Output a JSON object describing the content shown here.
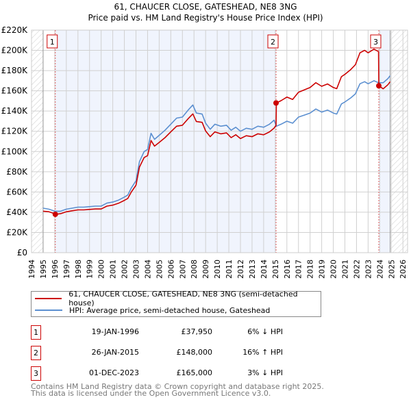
{
  "chart_data": {
    "type": "line",
    "title": "61, CHAUCER CLOSE, GATESHEAD, NE8 3NG",
    "subtitle": "Price paid vs. HM Land Registry's House Price Index (HPI)",
    "xlim": [
      1994,
      2026
    ],
    "ylim": [
      0,
      220000
    ],
    "x_ticks": [
      1994,
      1995,
      1996,
      1997,
      1998,
      1999,
      2000,
      2001,
      2002,
      2003,
      2004,
      2005,
      2006,
      2007,
      2008,
      2009,
      2010,
      2011,
      2012,
      2013,
      2014,
      2015,
      2016,
      2017,
      2018,
      2019,
      2020,
      2021,
      2022,
      2023,
      2024,
      2025,
      2026
    ],
    "y_ticks": [
      {
        "value": 0,
        "label": "£0"
      },
      {
        "value": 20000,
        "label": "£20K"
      },
      {
        "value": 40000,
        "label": "£40K"
      },
      {
        "value": 60000,
        "label": "£60K"
      },
      {
        "value": 80000,
        "label": "£80K"
      },
      {
        "value": 100000,
        "label": "£100K"
      },
      {
        "value": 120000,
        "label": "£120K"
      },
      {
        "value": 140000,
        "label": "£140K"
      },
      {
        "value": 160000,
        "label": "£160K"
      },
      {
        "value": 180000,
        "label": "£180K"
      },
      {
        "value": 200000,
        "label": "£200K"
      },
      {
        "value": 220000,
        "label": "£220K"
      }
    ],
    "grid": true,
    "series": [
      {
        "name": "61, CHAUCER CLOSE, GATESHEAD, NE8 3NG (semi-detached house)",
        "color": "#cc0000",
        "x": [
          1995.0,
          1995.5,
          1996.0,
          1996.05,
          1996.5,
          1997,
          1997.5,
          1998,
          1998.5,
          1999,
          1999.5,
          2000,
          2000.5,
          2001,
          2001.5,
          2002,
          2002.3,
          2002.6,
          2003,
          2003.3,
          2003.7,
          2004,
          2004.3,
          2004.6,
          2005,
          2005.5,
          2006,
          2006.5,
          2007,
          2007.5,
          2007.9,
          2008.2,
          2008.7,
          2009,
          2009.4,
          2009.8,
          2010.3,
          2010.8,
          2011.2,
          2011.6,
          2012,
          2012.5,
          2013,
          2013.5,
          2014,
          2014.5,
          2014.9,
          2015.07,
          2015.1,
          2015.5,
          2016,
          2016.5,
          2017,
          2017.5,
          2018,
          2018.5,
          2019,
          2019.5,
          2020,
          2020.3,
          2020.7,
          2021,
          2021.5,
          2021.9,
          2022.3,
          2022.7,
          2023,
          2023.5,
          2023.9,
          2023.92,
          2024.3,
          2024.7,
          2024.9
        ],
        "y": [
          41000,
          40500,
          38500,
          37950,
          38500,
          40400,
          41400,
          42300,
          42300,
          42800,
          43200,
          43200,
          46000,
          47000,
          48900,
          51700,
          53600,
          60000,
          66700,
          84600,
          94000,
          95900,
          110900,
          105300,
          109000,
          113700,
          119400,
          125000,
          126000,
          132500,
          137200,
          129700,
          128800,
          120300,
          114700,
          119400,
          117500,
          118400,
          113700,
          116600,
          112800,
          115600,
          114700,
          117500,
          116600,
          119400,
          123100,
          126000,
          148000,
          150300,
          153800,
          151400,
          158600,
          160900,
          163300,
          168000,
          164500,
          166800,
          163300,
          162100,
          174000,
          176300,
          181000,
          185800,
          197600,
          200000,
          197600,
          201200,
          198800,
          165000,
          162000,
          166000,
          169000
        ]
      },
      {
        "name": "HPI: Average price, semi-detached house, Gateshead",
        "color": "#5b8fd0",
        "x": [
          1995.0,
          1995.5,
          1996.0,
          1996.5,
          1997,
          1997.5,
          1998,
          1998.5,
          1999,
          1999.5,
          2000,
          2000.5,
          2001,
          2001.5,
          2002,
          2002.3,
          2002.6,
          2003,
          2003.3,
          2003.7,
          2004,
          2004.3,
          2004.6,
          2005,
          2005.5,
          2006,
          2006.5,
          2007,
          2007.5,
          2007.9,
          2008.2,
          2008.7,
          2009,
          2009.4,
          2009.8,
          2010.3,
          2010.8,
          2011.2,
          2011.6,
          2012,
          2012.5,
          2013,
          2013.5,
          2014,
          2014.5,
          2014.9,
          2015.1,
          2015.5,
          2016,
          2016.5,
          2017,
          2017.5,
          2018,
          2018.5,
          2019,
          2019.5,
          2020,
          2020.3,
          2020.7,
          2021,
          2021.5,
          2021.9,
          2022.3,
          2022.7,
          2023,
          2023.5,
          2023.9,
          2024.3,
          2024.7,
          2024.9
        ],
        "y": [
          44000,
          43000,
          41000,
          41000,
          43000,
          44000,
          45000,
          45000,
          45500,
          46000,
          46000,
          49000,
          50000,
          52000,
          55000,
          57000,
          64000,
          71000,
          90000,
          100000,
          102000,
          118000,
          112000,
          116000,
          121000,
          127000,
          133000,
          134000,
          141000,
          146000,
          138000,
          137000,
          128000,
          122000,
          127000,
          125000,
          126000,
          121000,
          124000,
          120000,
          123000,
          122000,
          125000,
          124000,
          127000,
          131000,
          125000,
          127000,
          130000,
          128000,
          134000,
          136000,
          138000,
          142000,
          139000,
          141000,
          138000,
          137000,
          147000,
          149000,
          153000,
          157000,
          167000,
          169000,
          167000,
          170000,
          168000,
          168000,
          172000,
          175000
        ]
      }
    ],
    "sales": [
      {
        "label": "1",
        "x": 1996.05,
        "y": 37950
      },
      {
        "label": "2",
        "x": 2015.07,
        "y": 148000
      },
      {
        "label": "3",
        "x": 2023.92,
        "y": 165000
      }
    ],
    "shaded_ranges": [
      [
        1996.05,
        2015.07
      ],
      [
        2023.92,
        2024.9
      ]
    ],
    "hatched_ranges": [
      [
        1994,
        1995
      ],
      [
        2024.9,
        2026.4
      ]
    ],
    "legend_placement": "below"
  },
  "legend": {
    "property": "61, CHAUCER CLOSE, GATESHEAD, NE8 3NG (semi-detached house)",
    "hpi": "HPI: Average price, semi-detached house, Gateshead"
  },
  "transactions": [
    {
      "num": "1",
      "date": "19-JAN-1996",
      "price": "£37,950",
      "hpi": "6% ↓ HPI"
    },
    {
      "num": "2",
      "date": "26-JAN-2015",
      "price": "£148,000",
      "hpi": "16% ↑ HPI"
    },
    {
      "num": "3",
      "date": "01-DEC-2023",
      "price": "£165,000",
      "hpi": "3% ↓ HPI"
    }
  ],
  "footer": {
    "line1": "Contains HM Land Registry data © Crown copyright and database right 2025.",
    "line2": "This data is licensed under the Open Government Licence v3.0."
  }
}
